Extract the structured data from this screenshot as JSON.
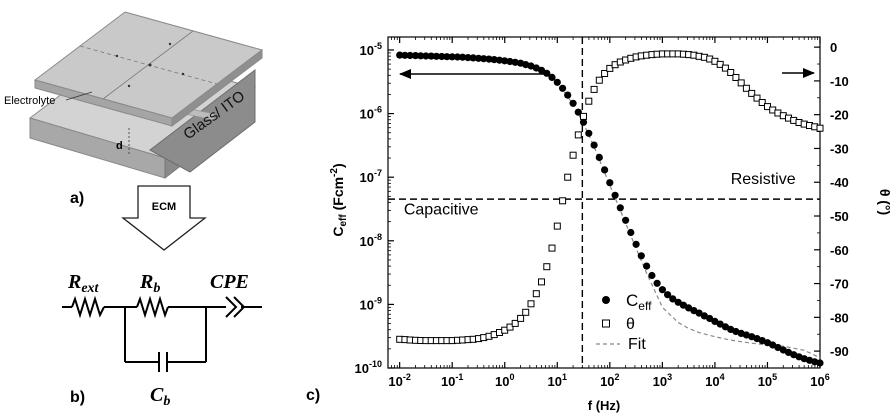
{
  "panel_a": {
    "label": "a)",
    "electrolyte_label": "Electrolyte",
    "glass_label": "Glass/ ITO",
    "gap_label": "d"
  },
  "panel_b": {
    "label": "b)",
    "arrow_label": "ECM",
    "r_ext": {
      "main": "R",
      "sub": "ext"
    },
    "r_b": {
      "main": "R",
      "sub": "b"
    },
    "cpe": "CPE",
    "c_b": {
      "main": "C",
      "sub": "b"
    }
  },
  "panel_c": {
    "label": "c)"
  },
  "chart_data": {
    "type": "scatter",
    "xlabel": "f (Hz)",
    "ylabel_left": {
      "main": "C",
      "sub": "eff",
      "tail": " (Fcm",
      "sup": "-2",
      "close": ")"
    },
    "ylabel_right": "θ (°)",
    "x_scale": "log",
    "xlim": [
      0.006,
      1000000
    ],
    "y_left_scale": "log",
    "y_left_lim": [
      1e-10,
      1.6e-05
    ],
    "y_right_lim": [
      -95,
      3
    ],
    "x_ticks": [
      {
        "value": 0.01,
        "base": "10",
        "exp": "-2"
      },
      {
        "value": 0.1,
        "base": "10",
        "exp": "-1"
      },
      {
        "value": 1,
        "base": "10",
        "exp": "0"
      },
      {
        "value": 10,
        "base": "10",
        "exp": "1"
      },
      {
        "value": 100,
        "base": "10",
        "exp": "2"
      },
      {
        "value": 1000,
        "base": "10",
        "exp": "3"
      },
      {
        "value": 10000,
        "base": "10",
        "exp": "4"
      },
      {
        "value": 100000,
        "base": "10",
        "exp": "5"
      },
      {
        "value": 1000000,
        "base": "10",
        "exp": "6"
      }
    ],
    "y_left_ticks": [
      {
        "value": 1e-10,
        "base": "10",
        "exp": "-10"
      },
      {
        "value": 1e-09,
        "base": "10",
        "exp": "-9"
      },
      {
        "value": 1e-08,
        "base": "10",
        "exp": "-8"
      },
      {
        "value": 1e-07,
        "base": "10",
        "exp": "-7"
      },
      {
        "value": 1e-06,
        "base": "10",
        "exp": "-6"
      },
      {
        "value": 1e-05,
        "base": "10",
        "exp": "-5"
      }
    ],
    "y_right_ticks": [
      0,
      -10,
      -20,
      -30,
      -40,
      -50,
      -60,
      -70,
      -80,
      -90
    ],
    "crossover_frequency": 30,
    "crossover_phase": -45,
    "annotations": [
      {
        "text": "Capacitive",
        "x": 0.012,
        "y_right": -49.5
      },
      {
        "text": "Resistive",
        "x": 20000,
        "y_right": -40.5
      }
    ],
    "series": [
      {
        "name": "C",
        "name_sub": "eff",
        "axis": "left",
        "marker": "filled-circle",
        "color": "#000000",
        "x": [
          0.01,
          0.0126,
          0.0158,
          0.02,
          0.0251,
          0.0316,
          0.0398,
          0.0501,
          0.0631,
          0.0794,
          0.1,
          0.126,
          0.158,
          0.2,
          0.251,
          0.316,
          0.398,
          0.501,
          0.631,
          0.794,
          1,
          1.26,
          1.58,
          2,
          2.51,
          3.16,
          3.98,
          5.01,
          6.31,
          7.94,
          10,
          12.6,
          15.8,
          20,
          25.1,
          31.6,
          39.8,
          50.1,
          63.1,
          79.4,
          100,
          126,
          158,
          200,
          251,
          316,
          398,
          501,
          631,
          794,
          1000,
          1260,
          1580,
          2000,
          2510,
          3160,
          3980,
          5010,
          6310,
          7940,
          10000,
          12600,
          15800,
          20000,
          25100,
          31600,
          39800,
          50100,
          63100,
          79400,
          100000,
          126000,
          158000,
          200000,
          251000,
          316000,
          398000,
          501000,
          631000,
          794000,
          1000000
        ],
        "y": [
          8.3e-06,
          8.25e-06,
          8.2e-06,
          8.15e-06,
          8.1e-06,
          8.05e-06,
          8e-06,
          7.95e-06,
          7.9e-06,
          7.85e-06,
          7.8e-06,
          7.75e-06,
          7.7e-06,
          7.6e-06,
          7.5e-06,
          7.4e-06,
          7.3e-06,
          7.2e-06,
          7.05e-06,
          6.9e-06,
          6.75e-06,
          6.6e-06,
          6.4e-06,
          6.2e-06,
          5.9e-06,
          5.6e-06,
          5.2e-06,
          4.8e-06,
          4.3e-06,
          3.7e-06,
          3.1e-06,
          2.5e-06,
          1.95e-06,
          1.45e-06,
          1.05e-06,
          7.3e-07,
          4.9e-07,
          3.2e-07,
          2.05e-07,
          1.3e-07,
          8.2e-08,
          5.2e-08,
          3.3e-08,
          2.1e-08,
          1.35e-08,
          8.8e-09,
          5.8e-09,
          4e-09,
          2.85e-09,
          2.15e-09,
          1.7e-09,
          1.42e-09,
          1.22e-09,
          1.08e-09,
          9.7e-10,
          8.8e-10,
          8e-10,
          7.3e-10,
          6.6e-10,
          6e-10,
          5.4e-10,
          4.9e-10,
          4.45e-10,
          4.05e-10,
          3.75e-10,
          3.5e-10,
          3.3e-10,
          3.1e-10,
          2.9e-10,
          2.7e-10,
          2.5e-10,
          2.3e-10,
          2.1e-10,
          1.92e-10,
          1.76e-10,
          1.62e-10,
          1.5e-10,
          1.4e-10,
          1.32e-10,
          1.25e-10,
          1.2e-10
        ]
      },
      {
        "name": "θ",
        "axis": "right",
        "marker": "open-square",
        "color": "#000000",
        "x": [
          0.01,
          0.0126,
          0.0158,
          0.02,
          0.0251,
          0.0316,
          0.0398,
          0.0501,
          0.0631,
          0.0794,
          0.1,
          0.126,
          0.158,
          0.2,
          0.251,
          0.316,
          0.398,
          0.501,
          0.631,
          0.794,
          1,
          1.26,
          1.58,
          2,
          2.51,
          3.16,
          3.98,
          5.01,
          6.31,
          7.94,
          10,
          12.6,
          15.8,
          20,
          25.1,
          31.6,
          39.8,
          50.1,
          63.1,
          79.4,
          100,
          126,
          158,
          200,
          251,
          316,
          398,
          501,
          631,
          794,
          1000,
          1260,
          1580,
          2000,
          2510,
          3160,
          3980,
          5010,
          6310,
          7940,
          10000,
          12600,
          15800,
          20000,
          25100,
          31600,
          39800,
          50100,
          63100,
          79400,
          100000,
          126000,
          158000,
          200000,
          251000,
          316000,
          398000,
          501000,
          631000,
          794000,
          1000000
        ],
        "y": [
          -86.5,
          -86.6,
          -86.7,
          -86.8,
          -86.85,
          -86.9,
          -86.9,
          -86.9,
          -86.9,
          -86.9,
          -86.9,
          -86.8,
          -86.7,
          -86.6,
          -86.5,
          -86.3,
          -86.0,
          -85.6,
          -85.1,
          -84.5,
          -83.8,
          -82.9,
          -81.8,
          -80.3,
          -78.5,
          -76.0,
          -73.0,
          -69.5,
          -65.0,
          -59.5,
          -53.0,
          -45.5,
          -38.5,
          -32.0,
          -26.0,
          -20.5,
          -16.0,
          -12.5,
          -9.8,
          -7.8,
          -6.3,
          -5.2,
          -4.4,
          -3.8,
          -3.3,
          -2.9,
          -2.6,
          -2.4,
          -2.2,
          -2.1,
          -2.0,
          -2.0,
          -2.0,
          -2.0,
          -2.1,
          -2.2,
          -2.4,
          -2.7,
          -3.0,
          -3.5,
          -4.2,
          -5.1,
          -6.2,
          -7.5,
          -9.0,
          -10.6,
          -12.2,
          -13.7,
          -15.1,
          -16.4,
          -17.6,
          -18.6,
          -19.5,
          -20.3,
          -21.0,
          -21.7,
          -22.3,
          -22.8,
          -23.2,
          -23.6,
          -24.0
        ]
      },
      {
        "name": "Fit",
        "axis": "left",
        "marker": "dashed-line",
        "color": "#888888",
        "x": [
          0.01,
          0.0316,
          0.1,
          0.316,
          1,
          3.16,
          10,
          20,
          31.6,
          50.1,
          100,
          200,
          316,
          501,
          1000,
          2000,
          3160,
          5010,
          10000,
          20000,
          50100,
          100000,
          200000,
          501000,
          1000000
        ],
        "y": [
          8.4e-06,
          8.2e-06,
          7.9e-06,
          7.4e-06,
          6.8e-06,
          5.6e-06,
          3.1e-06,
          1.4e-06,
          7e-07,
          3e-07,
          7.5e-08,
          1.9e-08,
          7.6e-09,
          3.1e-09,
          9e-10,
          5.2e-10,
          4.2e-10,
          3.6e-10,
          3.1e-10,
          2.75e-10,
          2.45e-10,
          2.3e-10,
          2.2e-10,
          1.9e-10,
          1.45e-10
        ]
      }
    ]
  }
}
